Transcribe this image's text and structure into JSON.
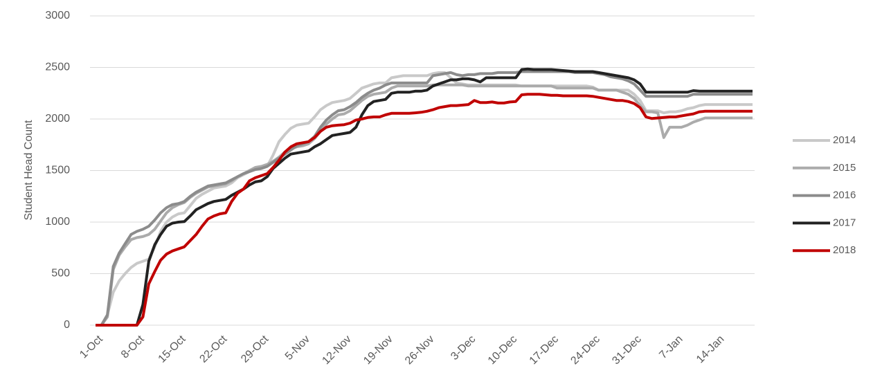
{
  "chart_data": {
    "type": "line",
    "y_label": "Student Head Count",
    "categories": [
      "1-Oct",
      null,
      null,
      null,
      null,
      null,
      null,
      "8-Oct",
      null,
      null,
      null,
      null,
      null,
      null,
      "15-Oct",
      null,
      null,
      null,
      null,
      null,
      null,
      "22-Oct",
      null,
      null,
      null,
      null,
      null,
      null,
      "29-Oct",
      null,
      null,
      null,
      null,
      null,
      null,
      "5-Nov",
      null,
      null,
      null,
      null,
      null,
      null,
      "12-Nov",
      null,
      null,
      null,
      null,
      null,
      null,
      "19-Nov",
      null,
      null,
      null,
      null,
      null,
      null,
      "26-Nov",
      null,
      null,
      null,
      null,
      null,
      null,
      "3-Dec",
      null,
      null,
      null,
      null,
      null,
      null,
      "10-Dec",
      null,
      null,
      null,
      null,
      null,
      null,
      "17-Dec",
      null,
      null,
      null,
      null,
      null,
      null,
      "24-Dec",
      null,
      null,
      null,
      null,
      null,
      null,
      "31-Dec",
      null,
      null,
      null,
      null,
      null,
      null,
      "7-Jan",
      null,
      null,
      null,
      null,
      null,
      null,
      "14-Jan",
      null,
      null,
      null,
      null,
      null,
      null
    ],
    "ylim": [
      0,
      3000
    ],
    "yticks": [
      0,
      500,
      1000,
      1500,
      2000,
      2500,
      3000
    ],
    "grid": true,
    "legend": "right",
    "series": [
      {
        "name": "2014",
        "color": "#c9c9c9",
        "values": [
          0,
          0,
          100,
          320,
          430,
          500,
          560,
          600,
          620,
          640,
          760,
          910,
          1000,
          1050,
          1080,
          1090,
          1160,
          1230,
          1270,
          1300,
          1330,
          1340,
          1350,
          1380,
          1430,
          1460,
          1490,
          1510,
          1520,
          1540,
          1650,
          1780,
          1850,
          1910,
          1940,
          1950,
          1960,
          2020,
          2090,
          2130,
          2160,
          2170,
          2180,
          2200,
          2250,
          2300,
          2320,
          2340,
          2350,
          2350,
          2400,
          2410,
          2420,
          2420,
          2420,
          2420,
          2420,
          2440,
          2450,
          2450,
          2400,
          2350,
          2340,
          2330,
          2330,
          2330,
          2330,
          2330,
          2330,
          2330,
          2330,
          2330,
          2320,
          2320,
          2320,
          2320,
          2320,
          2320,
          2320,
          2320,
          2320,
          2320,
          2320,
          2320,
          2310,
          2280,
          2280,
          2280,
          2280,
          2280,
          2280,
          2240,
          2180,
          2080,
          2080,
          2080,
          2060,
          2070,
          2070,
          2080,
          2100,
          2110,
          2130,
          2140,
          2140,
          2140,
          2140,
          2140,
          2140,
          2140,
          2140,
          2140
        ]
      },
      {
        "name": "2015",
        "color": "#ababab",
        "values": [
          0,
          0,
          80,
          540,
          680,
          760,
          830,
          850,
          860,
          880,
          930,
          1010,
          1090,
          1140,
          1170,
          1190,
          1240,
          1280,
          1310,
          1340,
          1350,
          1360,
          1370,
          1400,
          1440,
          1470,
          1500,
          1530,
          1540,
          1560,
          1590,
          1630,
          1680,
          1710,
          1730,
          1740,
          1760,
          1810,
          1880,
          1950,
          2000,
          2040,
          2050,
          2080,
          2130,
          2180,
          2220,
          2240,
          2250,
          2260,
          2300,
          2320,
          2320,
          2320,
          2320,
          2320,
          2320,
          2330,
          2330,
          2330,
          2330,
          2330,
          2330,
          2320,
          2320,
          2320,
          2320,
          2320,
          2320,
          2320,
          2320,
          2320,
          2320,
          2320,
          2320,
          2320,
          2320,
          2320,
          2300,
          2300,
          2300,
          2300,
          2300,
          2300,
          2300,
          2280,
          2280,
          2280,
          2280,
          2260,
          2240,
          2200,
          2130,
          2070,
          2070,
          2060,
          1820,
          1920,
          1920,
          1920,
          1940,
          1970,
          1990,
          2010,
          2010,
          2010,
          2010,
          2010,
          2010,
          2010,
          2010,
          2010
        ]
      },
      {
        "name": "2016",
        "color": "#8c8c8c",
        "values": [
          0,
          0,
          100,
          570,
          700,
          790,
          880,
          910,
          930,
          960,
          1020,
          1090,
          1140,
          1170,
          1180,
          1200,
          1250,
          1290,
          1320,
          1350,
          1360,
          1370,
          1380,
          1410,
          1440,
          1470,
          1490,
          1510,
          1520,
          1540,
          1580,
          1620,
          1660,
          1700,
          1740,
          1760,
          1780,
          1830,
          1920,
          1990,
          2040,
          2080,
          2090,
          2120,
          2160,
          2210,
          2250,
          2280,
          2300,
          2330,
          2350,
          2350,
          2350,
          2350,
          2350,
          2350,
          2350,
          2420,
          2430,
          2440,
          2450,
          2430,
          2420,
          2430,
          2430,
          2440,
          2440,
          2440,
          2450,
          2450,
          2450,
          2450,
          2460,
          2460,
          2460,
          2460,
          2460,
          2460,
          2460,
          2460,
          2460,
          2450,
          2450,
          2450,
          2450,
          2440,
          2430,
          2410,
          2400,
          2390,
          2370,
          2340,
          2280,
          2220,
          2220,
          2220,
          2220,
          2220,
          2220,
          2220,
          2220,
          2240,
          2240,
          2240,
          2240,
          2240,
          2240,
          2240,
          2240,
          2240,
          2240,
          2240
        ]
      },
      {
        "name": "2017",
        "color": "#222222",
        "values": [
          0,
          0,
          0,
          0,
          0,
          0,
          0,
          0,
          200,
          620,
          780,
          880,
          960,
          990,
          1000,
          1005,
          1060,
          1120,
          1150,
          1180,
          1200,
          1210,
          1220,
          1260,
          1290,
          1320,
          1360,
          1390,
          1400,
          1440,
          1520,
          1570,
          1620,
          1660,
          1670,
          1680,
          1690,
          1730,
          1760,
          1800,
          1840,
          1850,
          1860,
          1870,
          1920,
          2040,
          2130,
          2170,
          2180,
          2190,
          2250,
          2260,
          2260,
          2260,
          2270,
          2270,
          2280,
          2320,
          2340,
          2360,
          2380,
          2380,
          2390,
          2390,
          2380,
          2360,
          2400,
          2400,
          2400,
          2400,
          2400,
          2400,
          2480,
          2485,
          2480,
          2480,
          2480,
          2480,
          2475,
          2470,
          2465,
          2460,
          2460,
          2460,
          2460,
          2450,
          2440,
          2430,
          2420,
          2410,
          2400,
          2380,
          2340,
          2260,
          2260,
          2260,
          2260,
          2260,
          2260,
          2260,
          2260,
          2275,
          2270,
          2270,
          2270,
          2270,
          2270,
          2270,
          2270,
          2270,
          2270,
          2270
        ]
      },
      {
        "name": "2018",
        "color": "#c00000",
        "values": [
          0,
          0,
          0,
          0,
          0,
          0,
          0,
          0,
          80,
          400,
          520,
          630,
          690,
          720,
          740,
          760,
          820,
          880,
          960,
          1030,
          1060,
          1080,
          1090,
          1200,
          1280,
          1320,
          1400,
          1430,
          1450,
          1470,
          1530,
          1600,
          1680,
          1730,
          1760,
          1770,
          1780,
          1820,
          1880,
          1920,
          1935,
          1940,
          1945,
          1960,
          1990,
          2000,
          2015,
          2020,
          2020,
          2040,
          2055,
          2055,
          2055,
          2055,
          2060,
          2065,
          2075,
          2090,
          2110,
          2120,
          2130,
          2130,
          2135,
          2140,
          2180,
          2160,
          2160,
          2165,
          2155,
          2155,
          2165,
          2170,
          2235,
          2240,
          2240,
          2240,
          2235,
          2230,
          2230,
          2225,
          2225,
          2225,
          2225,
          2225,
          2220,
          2210,
          2200,
          2190,
          2180,
          2180,
          2170,
          2150,
          2110,
          2020,
          2005,
          2010,
          2015,
          2020,
          2020,
          2030,
          2040,
          2050,
          2070,
          2075,
          2075,
          2075,
          2075,
          2075,
          2075,
          2075,
          2075,
          2075
        ]
      }
    ]
  }
}
